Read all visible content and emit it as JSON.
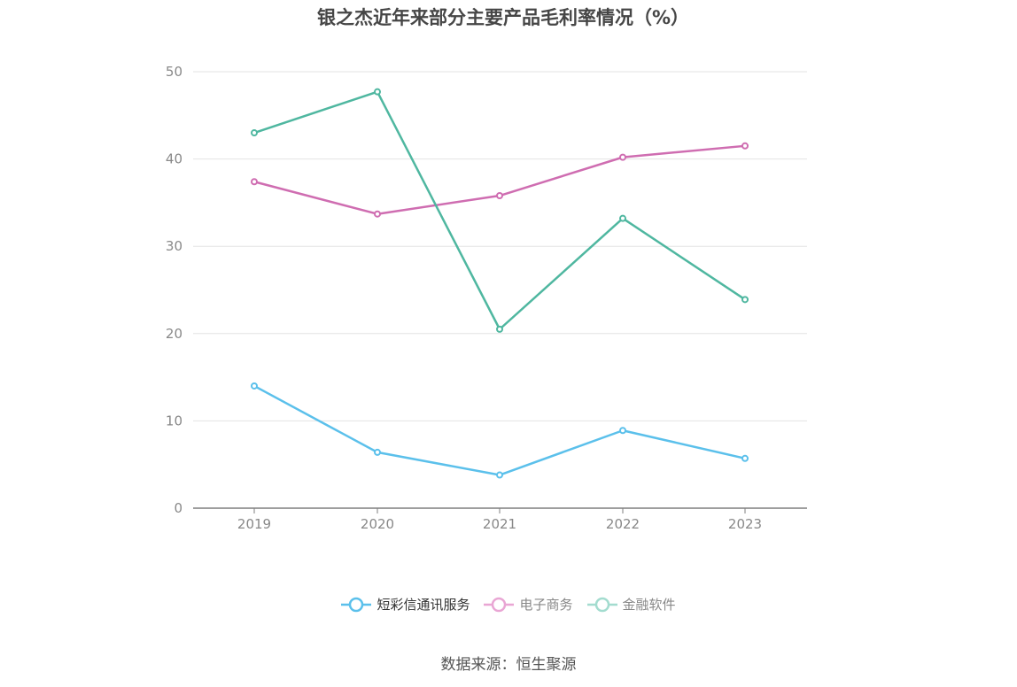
{
  "chart_data": {
    "type": "line",
    "title": "银之杰近年来部分主要产品毛利率情况（%）",
    "x": [
      "2019",
      "2020",
      "2021",
      "2022",
      "2023"
    ],
    "ylim": [
      0,
      50
    ],
    "yticks": [
      "0",
      "10",
      "20",
      "30",
      "40",
      "50"
    ],
    "grid": true,
    "legend_position": "bottom",
    "series": [
      {
        "name": "短彩信通讯服务",
        "color": "#5bc0eb",
        "values": [
          14.0,
          6.4,
          3.8,
          8.9,
          5.7
        ]
      },
      {
        "name": "电子商务",
        "color": "#cf6db1",
        "values": [
          37.4,
          33.7,
          35.8,
          40.2,
          41.5
        ]
      },
      {
        "name": "金融软件",
        "color": "#4fb7a0",
        "values": [
          43.0,
          47.7,
          20.5,
          33.2,
          23.9
        ]
      }
    ]
  },
  "legend_colors": [
    "#5bc0eb",
    "#e9a6d4",
    "#a3dccf"
  ],
  "legend_text_colors": [
    "#333333",
    "#888888",
    "#888888"
  ],
  "source": "数据来源：恒生聚源"
}
